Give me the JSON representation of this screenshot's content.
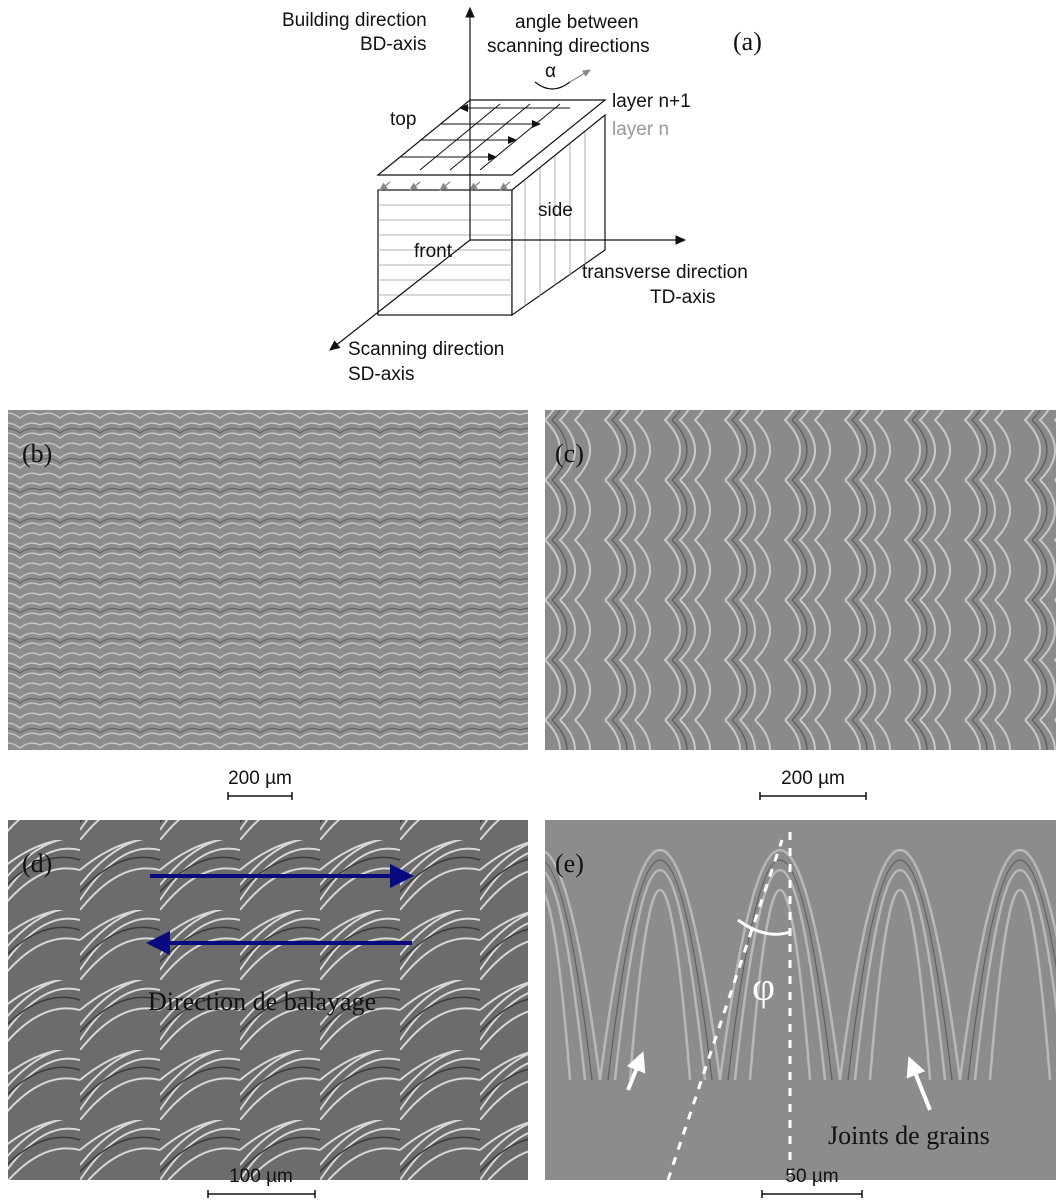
{
  "panel_a": {
    "label": "(a)",
    "building_direction": "Building direction",
    "bd_axis": "BD-axis",
    "angle_line1": "angle between",
    "angle_line2": "scanning directions",
    "alpha": "α",
    "layer_n1": "layer n+1",
    "layer_n": "layer n",
    "top": "top",
    "side": "side",
    "front": "front",
    "transverse_direction": "transverse direction",
    "td_axis": "TD-axis",
    "scanning_direction": "Scanning direction",
    "sd_axis": "SD-axis"
  },
  "panels": [
    {
      "label": "(b)",
      "scale_bar": "200 µm"
    },
    {
      "label": "(c)",
      "scale_bar": "200 µm"
    },
    {
      "label": "(d)",
      "scale_bar": "100 µm",
      "annotation": "Direction de balayage"
    },
    {
      "label": "(e)",
      "scale_bar": "50 µm",
      "angle": "φ",
      "annotation": "Joints de grains"
    }
  ]
}
